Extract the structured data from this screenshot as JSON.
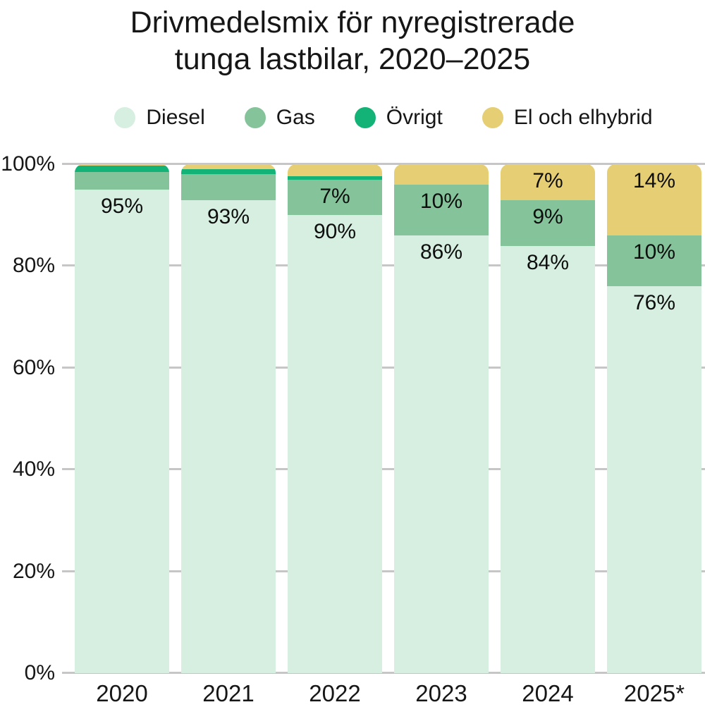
{
  "title": {
    "line1": "Drivmedelsmix för nyregistrerade",
    "line2": "tunga lastbilar, 2020–2025"
  },
  "chart_data": {
    "type": "bar",
    "stacked": true,
    "title": "Drivmedelsmix för nyregistrerade tunga lastbilar, 2020–2025",
    "unit": "%",
    "categories": [
      "2020",
      "2021",
      "2022",
      "2023",
      "2024",
      "2025*"
    ],
    "series": [
      {
        "name": "Diesel",
        "color": "#d6efe1",
        "values": [
          95,
          93,
          90,
          86,
          84,
          76
        ],
        "labels": [
          "95%",
          "93%",
          "90%",
          "86%",
          "84%",
          "76%"
        ]
      },
      {
        "name": "Gas",
        "color": "#85c49b",
        "values": [
          3.5,
          5,
          7,
          10,
          9,
          10
        ],
        "labels": [
          "",
          "",
          "7%",
          "10%",
          "9%",
          "10%"
        ]
      },
      {
        "name": "Övrigt",
        "color": "#13b377",
        "values": [
          1.2,
          1,
          0.7,
          0,
          0,
          0
        ],
        "labels": [
          "",
          "",
          "",
          "",
          "",
          ""
        ]
      },
      {
        "name": "El och elhybrid",
        "color": "#e5ce74",
        "values": [
          0.3,
          1,
          2.3,
          4,
          7,
          14
        ],
        "labels": [
          "",
          "",
          "",
          "",
          "7%",
          "14%"
        ]
      }
    ],
    "yticks": [
      0,
      20,
      40,
      60,
      80,
      100
    ],
    "ytick_labels": [
      "0%",
      "20%",
      "40%",
      "60%",
      "80%",
      "100%"
    ],
    "ylim": [
      0,
      100
    ],
    "grid": "horizontal",
    "legend_position": "top"
  },
  "colors": {
    "grid": "#c6c6c6",
    "background": "#ffffff",
    "text": "#161616"
  }
}
